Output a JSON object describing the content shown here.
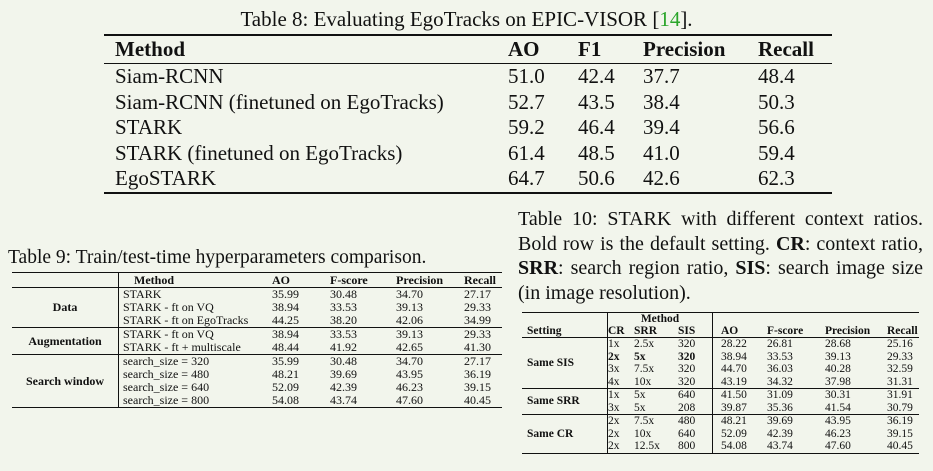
{
  "table8": {
    "caption_prefix": "Table 8: Evaluating EgoTracks on EPIC-VISOR [",
    "caption_ref": "14",
    "caption_suffix": "].",
    "headers": [
      "Method",
      "AO",
      "F1",
      "Precision",
      "Recall"
    ],
    "rows": [
      [
        "Siam-RCNN",
        "51.0",
        "42.4",
        "37.7",
        "48.4"
      ],
      [
        "Siam-RCNN (finetuned on EgoTracks)",
        "52.7",
        "43.5",
        "38.4",
        "50.3"
      ],
      [
        "STARK",
        "59.2",
        "46.4",
        "39.4",
        "56.6"
      ],
      [
        "STARK (finetuned on EgoTracks)",
        "61.4",
        "48.5",
        "41.0",
        "59.4"
      ],
      [
        "EgoSTARK",
        "64.7",
        "50.6",
        "42.6",
        "62.3"
      ]
    ]
  },
  "table9": {
    "caption": "Table 9: Train/test-time hyperparameters comparison.",
    "headers": [
      "Method",
      "AO",
      "F-score",
      "Precision",
      "Recall"
    ],
    "groups": [
      {
        "name": "Data",
        "rows": [
          [
            "STARK",
            "35.99",
            "30.48",
            "34.70",
            "27.17"
          ],
          [
            "STARK - ft on VQ",
            "38.94",
            "33.53",
            "39.13",
            "29.33"
          ],
          [
            "STARK - ft on EgoTracks",
            "44.25",
            "38.20",
            "42.06",
            "34.99"
          ]
        ]
      },
      {
        "name": "Augmentation",
        "rows": [
          [
            "STARK - ft on VQ",
            "38.94",
            "33.53",
            "39.13",
            "29.33"
          ],
          [
            "STARK - ft + multiscale",
            "48.44",
            "41.92",
            "42.65",
            "41.30"
          ]
        ]
      },
      {
        "name": "Search window",
        "rows": [
          [
            "search_size = 320",
            "35.99",
            "30.48",
            "34.70",
            "27.17"
          ],
          [
            "search_size = 480",
            "48.21",
            "39.69",
            "43.95",
            "36.19"
          ],
          [
            "search_size = 640",
            "52.09",
            "42.39",
            "46.23",
            "39.15"
          ],
          [
            "search_size = 800",
            "54.08",
            "43.74",
            "47.60",
            "40.45"
          ]
        ]
      }
    ]
  },
  "table10": {
    "caption_part1": "Table 10: STARK with different context ratios. Bold row is the default setting. ",
    "cr_abbr": "CR",
    "cr_def": ": context ratio, ",
    "srr_abbr": "SRR",
    "srr_def": ": search region ratio, ",
    "sis_abbr": "SIS",
    "sis_def": ": search image size (in image resolution).",
    "header_setting": "Setting",
    "header_method": "Method",
    "headers": [
      "CR",
      "SRR",
      "SIS",
      "AO",
      "F-score",
      "Precision",
      "Recall"
    ],
    "groups": [
      {
        "name": "Same SIS",
        "rows": [
          [
            "1x",
            "2.5x",
            "320",
            "28.22",
            "26.81",
            "28.68",
            "25.16"
          ],
          [
            "2x",
            "5x",
            "320",
            "38.94",
            "33.53",
            "39.13",
            "29.33"
          ],
          [
            "3x",
            "7.5x",
            "320",
            "44.70",
            "36.03",
            "40.28",
            "32.59"
          ],
          [
            "4x",
            "10x",
            "320",
            "43.19",
            "34.32",
            "37.98",
            "31.31"
          ]
        ]
      },
      {
        "name": "Same SRR",
        "rows": [
          [
            "1x",
            "5x",
            "640",
            "41.50",
            "31.09",
            "30.31",
            "31.91"
          ],
          [
            "3x",
            "5x",
            "208",
            "39.87",
            "35.36",
            "41.54",
            "30.79"
          ]
        ]
      },
      {
        "name": "Same CR",
        "rows": [
          [
            "2x",
            "7.5x",
            "480",
            "48.21",
            "39.69",
            "43.95",
            "36.19"
          ],
          [
            "2x",
            "10x",
            "640",
            "52.09",
            "42.39",
            "46.23",
            "39.15"
          ],
          [
            "2x",
            "12.5x",
            "800",
            "54.08",
            "43.74",
            "47.60",
            "40.45"
          ]
        ]
      }
    ]
  }
}
